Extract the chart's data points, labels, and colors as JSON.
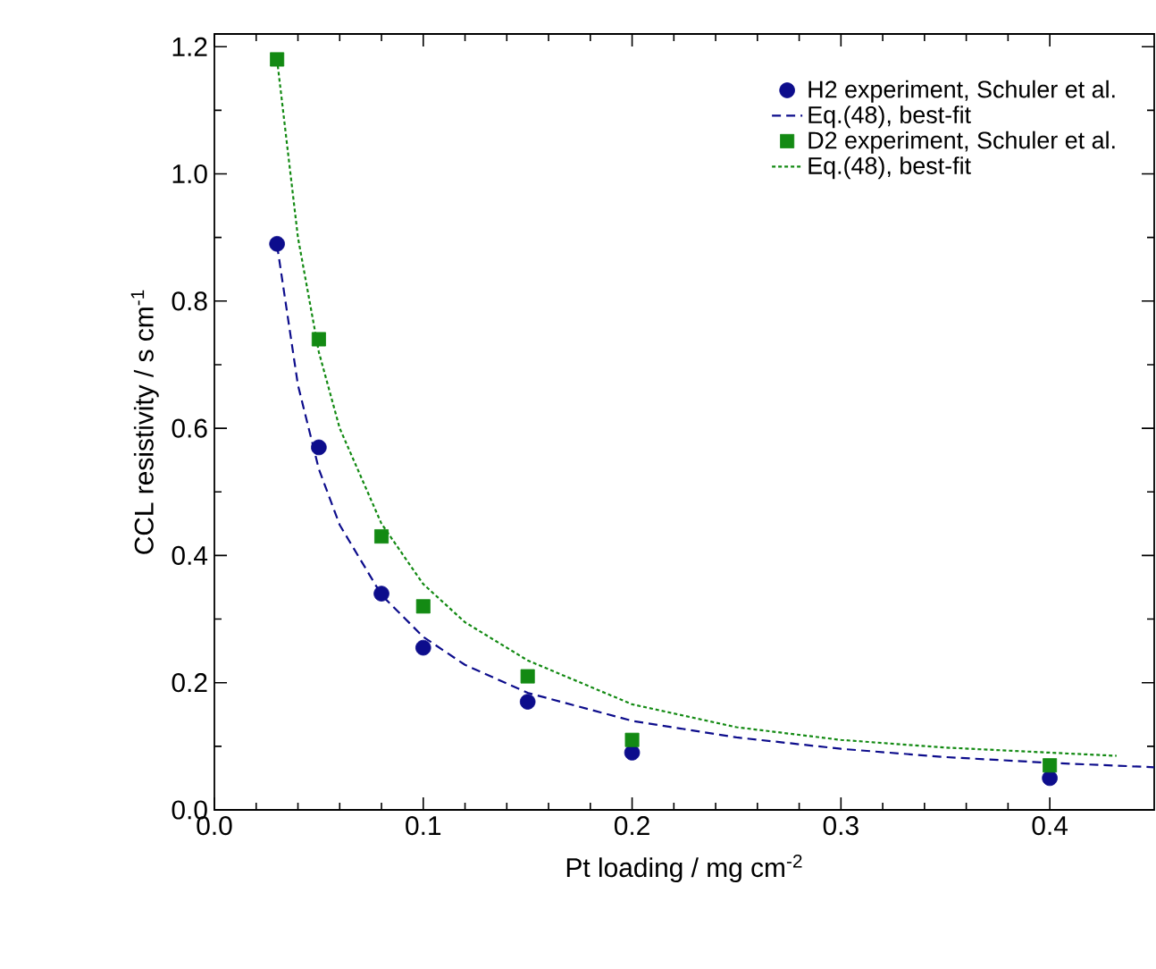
{
  "chart_data": {
    "type": "scatter",
    "xlabel": "Pt loading / mg cm$^{-2}$",
    "ylabel": "CCL resistivity / s cm$^{-1}$",
    "xlim": [
      0,
      0.45
    ],
    "ylim": [
      0,
      1.22
    ],
    "xticks": [
      {
        "value": 0,
        "label": "0.0"
      },
      0.1,
      0.2,
      0.3,
      0.4
    ],
    "yticks": [
      {
        "value": 0,
        "label": "0.0"
      },
      0.2,
      0.4,
      0.6,
      0.8,
      {
        "value": 1,
        "label": "1.0"
      },
      1.2
    ],
    "legend": "top right",
    "grid": false,
    "series": [
      {
        "name": "H2 experiment, Schuler et al.",
        "marker": "circle",
        "color": "#0d0d8c",
        "x": [
          0.03,
          0.05,
          0.08,
          0.1,
          0.15,
          0.2,
          0.4
        ],
        "values": [
          0.89,
          0.57,
          0.34,
          0.255,
          0.17,
          0.09,
          0.05
        ]
      },
      {
        "name": "Eq.(48), best-fit",
        "type": "line",
        "line_style": "dashed",
        "color": "#0d0d8c",
        "x": [
          0.03,
          0.04,
          0.05,
          0.06,
          0.08,
          0.1,
          0.12,
          0.15,
          0.2,
          0.25,
          0.3,
          0.35,
          0.4,
          0.45
        ],
        "values": [
          0.888,
          0.668,
          0.536,
          0.448,
          0.338,
          0.272,
          0.228,
          0.184,
          0.14,
          0.114,
          0.096,
          0.083,
          0.074,
          0.067
        ]
      },
      {
        "name": "D2 experiment, Schuler et al.",
        "marker": "square",
        "color": "#138a13",
        "x": [
          0.03,
          0.05,
          0.08,
          0.1,
          0.15,
          0.2,
          0.4
        ],
        "values": [
          1.18,
          0.74,
          0.43,
          0.32,
          0.21,
          0.11,
          0.07
        ]
      },
      {
        "name": "Eq.(48), best-fit",
        "type": "line",
        "line_style": "dotted",
        "color": "#138a13",
        "x": [
          0.03,
          0.04,
          0.05,
          0.06,
          0.08,
          0.1,
          0.12,
          0.15,
          0.2,
          0.25,
          0.3,
          0.35,
          0.4,
          0.432
        ],
        "values": [
          1.18,
          0.9,
          0.72,
          0.6,
          0.45,
          0.355,
          0.295,
          0.235,
          0.166,
          0.13,
          0.11,
          0.098,
          0.09,
          0.085
        ]
      }
    ]
  }
}
